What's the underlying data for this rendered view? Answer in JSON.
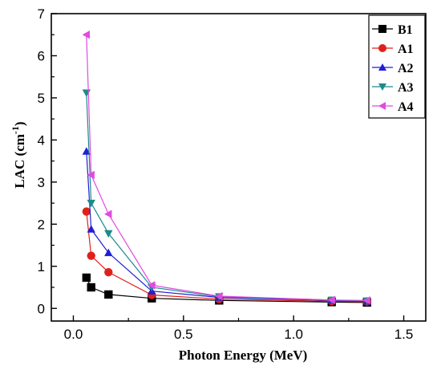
{
  "chart_data": {
    "type": "line",
    "title": "",
    "xlabel": "Photon Energy (MeV)",
    "ylabel": "LAC (cm",
    "ylabel_sup": "-1",
    "ylabel_close": ")",
    "xlim": [
      -0.1,
      1.6
    ],
    "ylim": [
      -0.3,
      7
    ],
    "x_ticks": [
      0.0,
      0.5,
      1.0,
      1.5
    ],
    "x_tick_labels": [
      "0.0",
      "0.5",
      "1.0",
      "1.5"
    ],
    "y_ticks": [
      0,
      1,
      2,
      3,
      4,
      5,
      6,
      7
    ],
    "y_tick_labels": [
      "0",
      "1",
      "2",
      "3",
      "4",
      "5",
      "6",
      "7"
    ],
    "grid": false,
    "legend_position": "top-right",
    "x": [
      0.0595,
      0.081,
      0.1595,
      0.356,
      0.662,
      1.173,
      1.333
    ],
    "series": [
      {
        "name": "B1",
        "color": "#000000",
        "marker": "square",
        "values": [
          0.73,
          0.5,
          0.33,
          0.24,
          0.19,
          0.15,
          0.14
        ]
      },
      {
        "name": "A1",
        "color": "#e0211b",
        "marker": "circle",
        "values": [
          2.3,
          1.25,
          0.86,
          0.32,
          0.22,
          0.17,
          0.16
        ]
      },
      {
        "name": "A2",
        "color": "#1f1fd6",
        "marker": "triangle-up",
        "values": [
          3.73,
          1.88,
          1.32,
          0.41,
          0.26,
          0.19,
          0.17
        ]
      },
      {
        "name": "A3",
        "color": "#1b8a8a",
        "marker": "triangle-down",
        "values": [
          5.12,
          2.5,
          1.78,
          0.5,
          0.28,
          0.2,
          0.18
        ]
      },
      {
        "name": "A4",
        "color": "#e04be0",
        "marker": "triangle-left",
        "values": [
          6.5,
          3.17,
          2.24,
          0.55,
          0.29,
          0.2,
          0.19
        ]
      }
    ]
  }
}
